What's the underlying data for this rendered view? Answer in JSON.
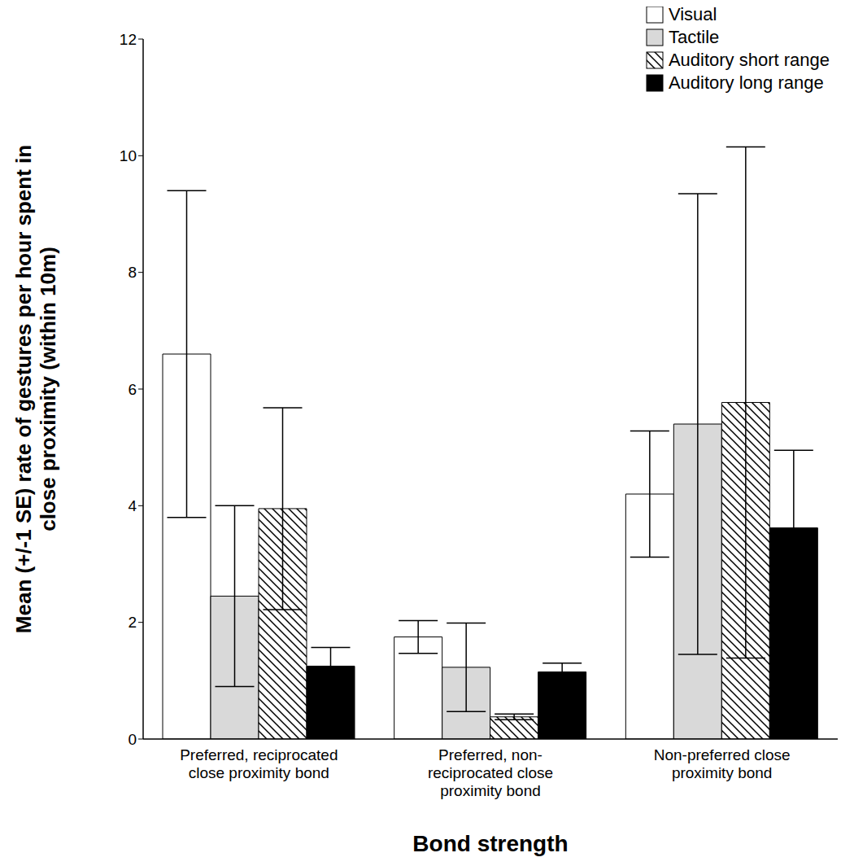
{
  "chart_data": {
    "type": "bar",
    "x_label": "Bond strength",
    "y_label": "Mean (+/- 1 SE) rate of gestures per hour spent in close proximity (within 10m)",
    "categories": [
      "Preferred, reciprocated close proximity bond",
      "Preferred, non-reciprocated close proximity bond",
      "Non-preferred close proximity bond"
    ],
    "series": [
      {
        "name": "Visual",
        "color": "#ffffff",
        "values": [
          6.6,
          1.75,
          4.2
        ],
        "se": [
          2.8,
          0.28,
          1.08
        ]
      },
      {
        "name": "Tactile",
        "color": "#d9d9d9",
        "values": [
          2.45,
          1.23,
          5.4
        ],
        "se": [
          1.55,
          0.76,
          3.95
        ]
      },
      {
        "name": "Auditory short range",
        "color": "#ffffff",
        "values": [
          3.95,
          0.38,
          5.77
        ],
        "se": [
          1.73,
          0.05,
          4.38
        ]
      },
      {
        "name": "Auditory long range",
        "color": "#000000",
        "values": [
          1.25,
          1.15,
          3.62
        ],
        "se": [
          0.32,
          0.15,
          1.33
        ]
      }
    ],
    "ylim": [
      0,
      12
    ],
    "yticks": [
      0,
      2,
      4,
      6,
      8,
      10,
      12
    ],
    "grid": false,
    "legend": "upper right"
  }
}
